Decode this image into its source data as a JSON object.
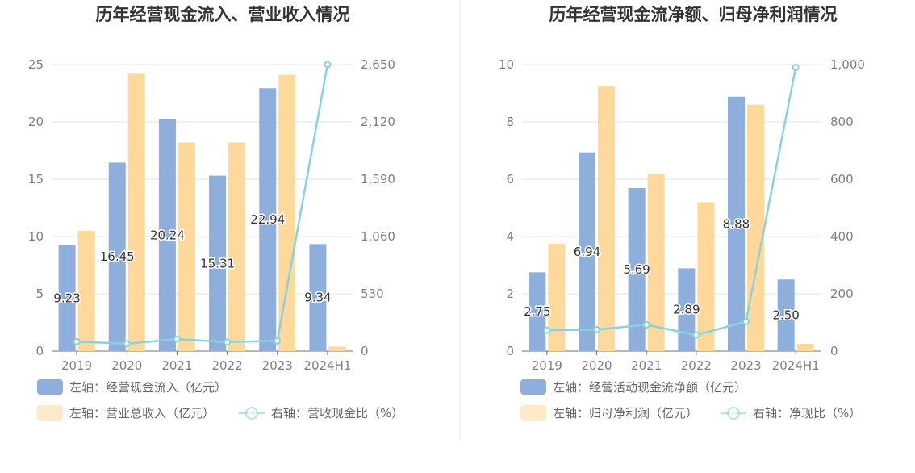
{
  "colors": {
    "bar_primary": "#8eaedb",
    "bar_secondary": "#fed99b",
    "line": "#88d3db",
    "grid": "#e0e3ec",
    "axis_text": "#7f7f7f",
    "title_text": "#333333",
    "legend_text": "#666666",
    "divider": "#e8e8e8"
  },
  "chart_data": [
    {
      "type": "bar",
      "title": "历年经营现金流入、营业收入情况",
      "categories": [
        "2019",
        "2020",
        "2021",
        "2022",
        "2023",
        "2024H1"
      ],
      "left_axis": {
        "ylim": [
          0,
          25
        ],
        "ticks": [
          "0",
          "5",
          "10",
          "15",
          "20",
          "25"
        ]
      },
      "right_axis": {
        "ylim": [
          0,
          2650
        ],
        "ticks": [
          "0",
          "530",
          "1,060",
          "1,590",
          "2,120",
          "2,650"
        ]
      },
      "series": [
        {
          "name": "左轴：经营现金流入（亿元）",
          "type": "bar",
          "axis": "left",
          "values": [
            9.23,
            16.45,
            20.24,
            15.31,
            22.94,
            9.34
          ],
          "labels": [
            "9.23",
            "16.45",
            "20.24",
            "15.31",
            "22.94",
            "9.34"
          ]
        },
        {
          "name": "左轴：营业总收入（亿元）",
          "type": "bar",
          "axis": "left",
          "values": [
            10.5,
            24.2,
            18.2,
            18.2,
            24.1,
            0.4
          ]
        },
        {
          "name": "右轴：营收现金比（%）",
          "type": "line",
          "axis": "right",
          "values": [
            88,
            68,
            111,
            84,
            95,
            2650
          ]
        }
      ],
      "legend_position": "bottom-left",
      "grid": true
    },
    {
      "type": "bar",
      "title": "历年经营现金流净额、归母净利润情况",
      "categories": [
        "2019",
        "2020",
        "2021",
        "2022",
        "2023",
        "2024H1"
      ],
      "left_axis": {
        "ylim": [
          0,
          10
        ],
        "ticks": [
          "0",
          "2",
          "4",
          "6",
          "8",
          "10"
        ]
      },
      "right_axis": {
        "ylim": [
          0,
          1000
        ],
        "ticks": [
          "0",
          "200",
          "400",
          "600",
          "800",
          "1,000"
        ]
      },
      "series": [
        {
          "name": "左轴：经营活动现金流净额（亿元）",
          "type": "bar",
          "axis": "left",
          "values": [
            2.75,
            6.94,
            5.69,
            2.89,
            8.88,
            2.5
          ],
          "labels": [
            "2.75",
            "6.94",
            "5.69",
            "2.89",
            "8.88",
            "2.50"
          ]
        },
        {
          "name": "左轴：归母净利润（亿元）",
          "type": "bar",
          "axis": "left",
          "values": [
            3.75,
            9.25,
            6.2,
            5.2,
            8.6,
            0.25
          ]
        },
        {
          "name": "右轴：净现比（%）",
          "type": "line",
          "axis": "right",
          "values": [
            73,
            75,
            92,
            56,
            103,
            990
          ]
        }
      ],
      "legend_position": "bottom-left",
      "grid": true
    }
  ]
}
